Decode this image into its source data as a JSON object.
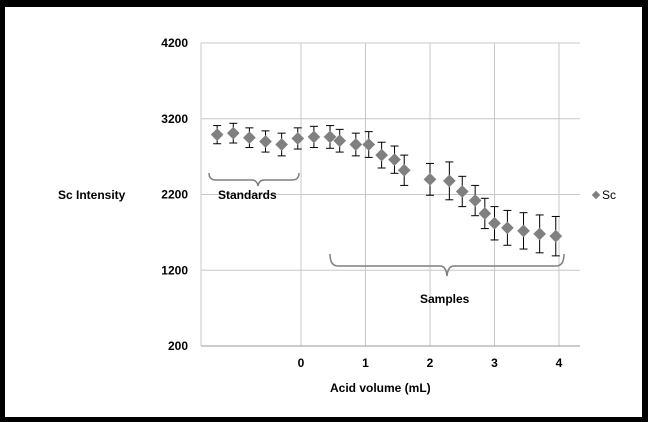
{
  "chart_data": {
    "type": "scatter",
    "xlabel": "Acid volume (mL)",
    "ylabel": "Sc Intensity",
    "ylim": [
      200,
      4200
    ],
    "yticks": [
      200,
      1200,
      2200,
      3200,
      4200
    ],
    "xticks": [
      0,
      1,
      2,
      3,
      4
    ],
    "xlim": [
      -1.5,
      4.2
    ],
    "grid": true,
    "legend_position": "right",
    "marker_color": "#808080",
    "gridline_color": "#c8c8c8",
    "series": [
      {
        "name": "Sc",
        "points": [
          {
            "x": -1.3,
            "y": 2990,
            "err": 120
          },
          {
            "x": -1.05,
            "y": 3010,
            "err": 130
          },
          {
            "x": -0.8,
            "y": 2950,
            "err": 130
          },
          {
            "x": -0.55,
            "y": 2900,
            "err": 140
          },
          {
            "x": -0.3,
            "y": 2860,
            "err": 150
          },
          {
            "x": -0.05,
            "y": 2940,
            "err": 140
          },
          {
            "x": 0.2,
            "y": 2960,
            "err": 140
          },
          {
            "x": 0.45,
            "y": 2960,
            "err": 150
          },
          {
            "x": 0.6,
            "y": 2910,
            "err": 150
          },
          {
            "x": 0.85,
            "y": 2860,
            "err": 150
          },
          {
            "x": 1.05,
            "y": 2860,
            "err": 170
          },
          {
            "x": 1.25,
            "y": 2720,
            "err": 170
          },
          {
            "x": 1.45,
            "y": 2660,
            "err": 180
          },
          {
            "x": 1.6,
            "y": 2520,
            "err": 200
          },
          {
            "x": 2.0,
            "y": 2400,
            "err": 210
          },
          {
            "x": 2.3,
            "y": 2380,
            "err": 250
          },
          {
            "x": 2.5,
            "y": 2240,
            "err": 200
          },
          {
            "x": 2.7,
            "y": 2120,
            "err": 200
          },
          {
            "x": 2.85,
            "y": 1950,
            "err": 200
          },
          {
            "x": 3.0,
            "y": 1820,
            "err": 220
          },
          {
            "x": 3.2,
            "y": 1760,
            "err": 230
          },
          {
            "x": 3.45,
            "y": 1720,
            "err": 240
          },
          {
            "x": 3.7,
            "y": 1680,
            "err": 250
          },
          {
            "x": 3.95,
            "y": 1650,
            "err": 260
          }
        ]
      }
    ],
    "annotations": {
      "standards": "Standards",
      "samples": "Samples"
    }
  }
}
